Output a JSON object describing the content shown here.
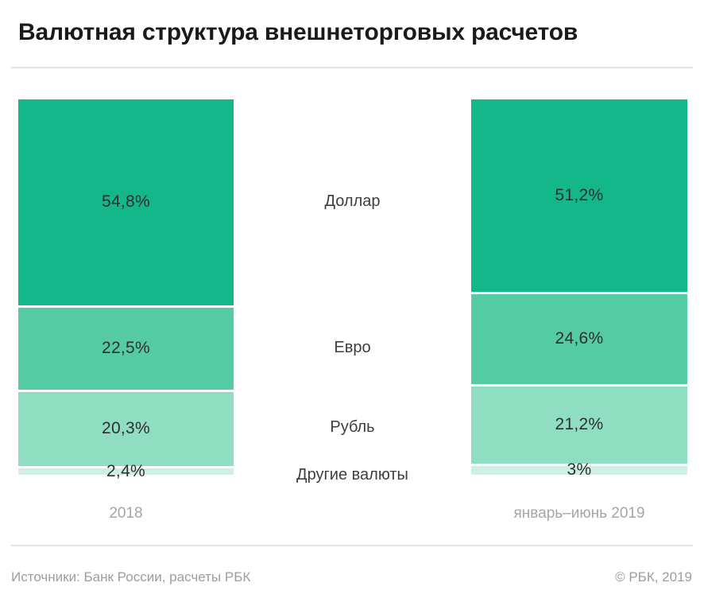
{
  "title": "Валютная структура внешнеторговых расчетов",
  "chart_data": {
    "type": "bar",
    "variant": "stacked-100",
    "title": "Валютная структура внешнеторговых расчетов",
    "unit": "%",
    "categories": [
      "2018",
      "январь–июнь 2019"
    ],
    "series": [
      {
        "name": "Доллар",
        "values": [
          54.8,
          51.2
        ]
      },
      {
        "name": "Евро",
        "values": [
          22.5,
          24.6
        ]
      },
      {
        "name": "Рубль",
        "values": [
          20.3,
          21.2
        ]
      },
      {
        "name": "Другие валюты",
        "values": [
          2.4,
          3
        ]
      }
    ],
    "ylim": [
      0,
      100
    ],
    "grid": false,
    "legend_position": "between-bars-center"
  },
  "bars": {
    "left": {
      "axis_label": "2018",
      "values": [
        "54,8%",
        "22,5%",
        "20,3%",
        "2,4%"
      ]
    },
    "right": {
      "axis_label": "январь–июнь 2019",
      "values": [
        "51,2%",
        "24,6%",
        "21,2%",
        "3%"
      ]
    }
  },
  "segment_labels": [
    "Доллар",
    "Евро",
    "Рубль",
    "Другие валюты"
  ],
  "colors": {
    "dollar": "#13b789",
    "euro": "#55cba4",
    "ruble": "#8fdec1",
    "other": "#cfefe3"
  },
  "footer": {
    "source": "Источники: Банк России, расчеты РБК",
    "copyright": "© РБК, 2019"
  }
}
